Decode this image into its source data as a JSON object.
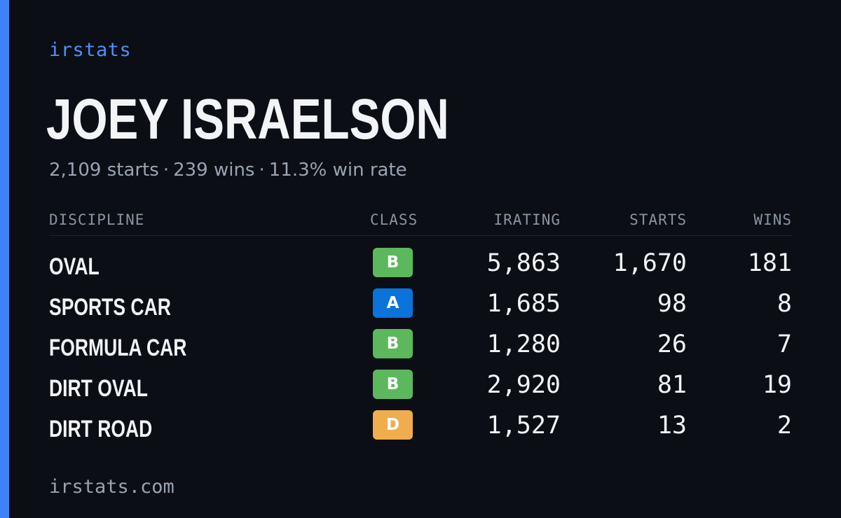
{
  "brand": "irstats",
  "driver": {
    "name": "JOEY ISRAELSON",
    "starts_text": "2,109 starts",
    "wins_text": "239 wins",
    "win_rate_text": "11.3% win rate",
    "separator": "·"
  },
  "table": {
    "headers": {
      "discipline": "DISCIPLINE",
      "class": "CLASS",
      "irating": "IRATING",
      "starts": "STARTS",
      "wins": "WINS"
    },
    "rows": [
      {
        "discipline": "OVAL",
        "class": "B",
        "class_color": "#5cb85c",
        "irating": "5,863",
        "starts": "1,670",
        "wins": "181"
      },
      {
        "discipline": "SPORTS CAR",
        "class": "A",
        "class_color": "#0a74da",
        "irating": "1,685",
        "starts": "98",
        "wins": "8"
      },
      {
        "discipline": "FORMULA CAR",
        "class": "B",
        "class_color": "#5cb85c",
        "irating": "1,280",
        "starts": "26",
        "wins": "7"
      },
      {
        "discipline": "DIRT OVAL",
        "class": "B",
        "class_color": "#5cb85c",
        "irating": "2,920",
        "starts": "81",
        "wins": "19"
      },
      {
        "discipline": "DIRT ROAD",
        "class": "D",
        "class_color": "#f0ad4e",
        "irating": "1,527",
        "starts": "13",
        "wins": "2"
      }
    ]
  },
  "footer": {
    "domain": "irstats.com"
  },
  "colors": {
    "accent": "#3d82f6",
    "background": "#0b0e15"
  }
}
